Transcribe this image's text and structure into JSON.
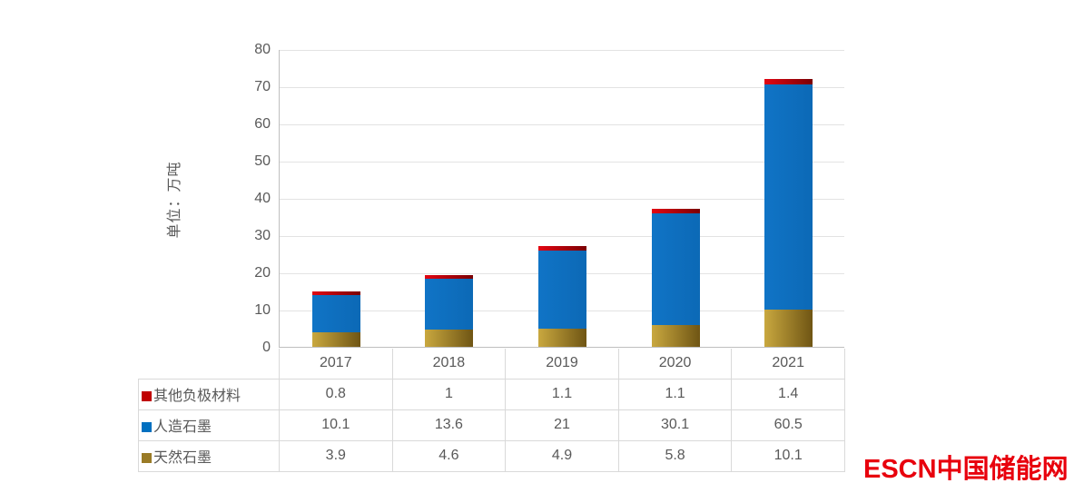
{
  "chart": {
    "y_axis_title": "单位：万吨",
    "y_tick_labels": [
      "80",
      "70",
      "60",
      "50",
      "40",
      "30",
      "20",
      "10",
      "0"
    ]
  },
  "chart_data": {
    "type": "bar",
    "stacked": true,
    "title": "",
    "xlabel": "",
    "ylabel": "单位：万吨",
    "ylim": [
      0,
      80
    ],
    "ytick_step": 10,
    "grid": true,
    "legend_position": "table-rows-left",
    "categories": [
      "2017",
      "2018",
      "2019",
      "2020",
      "2021"
    ],
    "series": [
      {
        "name": "其他负极材料",
        "values": [
          0.8,
          1,
          1.1,
          1.1,
          1.4
        ],
        "key_color": "#C00000",
        "bar_gradient": [
          "#E30613",
          "#7A0004"
        ]
      },
      {
        "name": "人造石墨",
        "values": [
          10.1,
          13.6,
          21,
          30.1,
          60.5
        ],
        "key_color": "#0070C0",
        "bar_gradient": [
          "#1074C6",
          "#0C69B6"
        ]
      },
      {
        "name": "天然石墨",
        "values": [
          3.9,
          4.6,
          4.9,
          5.8,
          10.1
        ],
        "key_color": "#9A7B26",
        "bar_gradient": [
          "#C9A83F",
          "#6F5514"
        ]
      }
    ]
  },
  "logo": {
    "text": "ESCN中国储能网",
    "color": "#E8000D"
  }
}
